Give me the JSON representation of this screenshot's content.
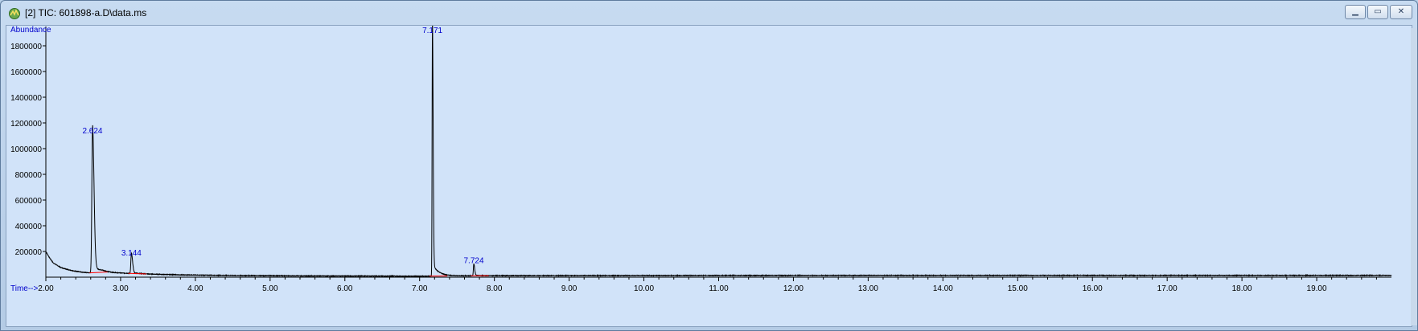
{
  "window": {
    "title": "[2] TIC: 601898-a.D\\data.ms",
    "icon": "chromatogram-app-icon",
    "controls": [
      "minimize-icon",
      "maximize-icon",
      "close-icon"
    ]
  },
  "chart_data": {
    "type": "line",
    "ylabel": "Abundance",
    "xlabel": "Time-->",
    "xlim": [
      2.0,
      20.0
    ],
    "ylim": [
      0,
      1950000
    ],
    "x_ticks": [
      2.0,
      3.0,
      4.0,
      5.0,
      6.0,
      7.0,
      8.0,
      9.0,
      10.0,
      11.0,
      12.0,
      13.0,
      14.0,
      15.0,
      16.0,
      17.0,
      18.0,
      19.0
    ],
    "x_tick_labels": [
      "2.00",
      "3.00",
      "4.00",
      "5.00",
      "6.00",
      "7.00",
      "8.00",
      "9.00",
      "10.00",
      "11.00",
      "12.00",
      "13.00",
      "14.00",
      "15.00",
      "16.00",
      "17.00",
      "18.00",
      "19.00"
    ],
    "y_ticks": [
      200000,
      400000,
      600000,
      800000,
      1000000,
      1200000,
      1400000,
      1600000,
      1800000
    ],
    "y_tick_labels": [
      "200000",
      "400000",
      "600000",
      "800000",
      "1000000",
      "1200000",
      "1400000",
      "1600000",
      "1800000"
    ],
    "peaks": [
      {
        "rt": 2.624,
        "label": "2.624",
        "height": 1100000,
        "width": 0.025
      },
      {
        "rt": 3.144,
        "label": "3.144",
        "height": 150000,
        "width": 0.02
      },
      {
        "rt": 7.171,
        "label": "7.171",
        "height": 1900000,
        "width": 0.012
      },
      {
        "rt": 7.724,
        "label": "7.724",
        "height": 90000,
        "width": 0.015
      }
    ],
    "baseline": [
      [
        2.0,
        200000
      ],
      [
        2.05,
        150000
      ],
      [
        2.1,
        110000
      ],
      [
        2.2,
        75000
      ],
      [
        2.35,
        50000
      ],
      [
        2.5,
        38000
      ],
      [
        2.6,
        33000
      ],
      [
        2.75,
        45000
      ],
      [
        2.9,
        35000
      ],
      [
        3.1,
        30000
      ],
      [
        3.4,
        24000
      ],
      [
        3.8,
        18000
      ],
      [
        4.5,
        13000
      ],
      [
        5.5,
        10000
      ],
      [
        7.0,
        8000
      ],
      [
        8.0,
        12000
      ],
      [
        10.0,
        13000
      ],
      [
        14.0,
        14000
      ],
      [
        18.0,
        14000
      ],
      [
        20.0,
        14000
      ]
    ],
    "colors": {
      "plot_background": "#d1e3f9",
      "trace": "#000000",
      "peak_label": "#0000cc",
      "axis_label": "#0000cc",
      "integration_marker": "#ff0000"
    },
    "grid": false
  }
}
